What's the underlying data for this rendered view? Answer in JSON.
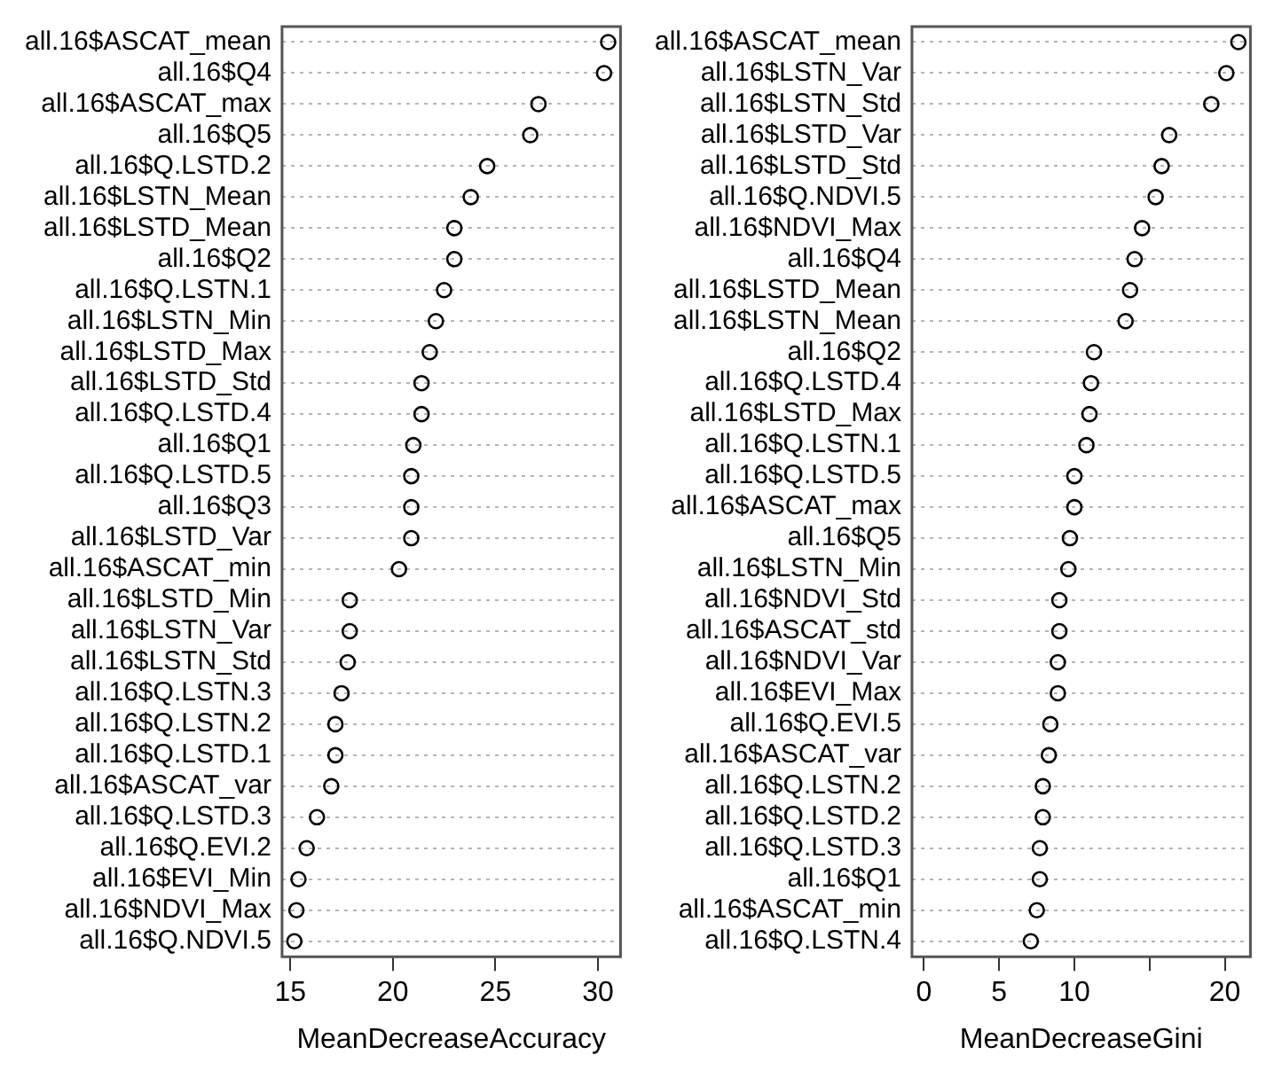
{
  "chart_data": [
    {
      "type": "scatter",
      "orientation": "horizontal",
      "xlabel": "MeanDecreaseAccuracy",
      "marker": "circle",
      "grid": "y",
      "xlim": [
        14.6,
        31.1
      ],
      "xticks": [
        15,
        20,
        25,
        30
      ],
      "categories": [
        "all.16$ASCAT_mean",
        "all.16$Q4",
        "all.16$ASCAT_max",
        "all.16$Q5",
        "all.16$Q.LSTD.2",
        "all.16$LSTN_Mean",
        "all.16$LSTD_Mean",
        "all.16$Q2",
        "all.16$Q.LSTN.1",
        "all.16$LSTN_Min",
        "all.16$LSTD_Max",
        "all.16$LSTD_Std",
        "all.16$Q.LSTD.4",
        "all.16$Q1",
        "all.16$Q.LSTD.5",
        "all.16$Q3",
        "all.16$LSTD_Var",
        "all.16$ASCAT_min",
        "all.16$LSTD_Min",
        "all.16$LSTN_Var",
        "all.16$LSTN_Std",
        "all.16$Q.LSTN.3",
        "all.16$Q.LSTN.2",
        "all.16$Q.LSTD.1",
        "all.16$ASCAT_var",
        "all.16$Q.LSTD.3",
        "all.16$Q.EVI.2",
        "all.16$EVI_Min",
        "all.16$NDVI_Max",
        "all.16$Q.NDVI.5"
      ],
      "series": [
        {
          "color": "#000000",
          "values": [
            30.5,
            30.3,
            27.1,
            26.7,
            24.6,
            23.8,
            23.0,
            23.0,
            22.5,
            22.1,
            21.8,
            21.4,
            21.4,
            21.0,
            20.9,
            20.9,
            20.9,
            20.3,
            17.9,
            17.9,
            17.8,
            17.5,
            17.2,
            17.2,
            17.0,
            16.3,
            15.8,
            15.4,
            15.3,
            15.2
          ]
        }
      ]
    },
    {
      "type": "scatter",
      "orientation": "horizontal",
      "xlabel": "MeanDecreaseGini",
      "marker": "circle",
      "grid": "y",
      "xlim": [
        -0.8,
        21.7
      ],
      "xticks": [
        0,
        5,
        10,
        {
          "value": 15,
          "label": null
        },
        20
      ],
      "categories": [
        "all.16$ASCAT_mean",
        "all.16$LSTN_Var",
        "all.16$LSTN_Std",
        "all.16$LSTD_Var",
        "all.16$LSTD_Std",
        "all.16$Q.NDVI.5",
        "all.16$NDVI_Max",
        "all.16$Q4",
        "all.16$LSTD_Mean",
        "all.16$LSTN_Mean",
        "all.16$Q2",
        "all.16$Q.LSTD.4",
        "all.16$LSTD_Max",
        "all.16$Q.LSTN.1",
        "all.16$Q.LSTD.5",
        "all.16$ASCAT_max",
        "all.16$Q5",
        "all.16$LSTN_Min",
        "all.16$NDVI_Std",
        "all.16$ASCAT_std",
        "all.16$NDVI_Var",
        "all.16$EVI_Max",
        "all.16$Q.EVI.5",
        "all.16$ASCAT_var",
        "all.16$Q.LSTN.2",
        "all.16$Q.LSTD.2",
        "all.16$Q.LSTD.3",
        "all.16$Q1",
        "all.16$ASCAT_min",
        "all.16$Q.LSTN.4"
      ],
      "series": [
        {
          "color": "#000000",
          "values": [
            20.9,
            20.1,
            19.1,
            16.3,
            15.8,
            15.4,
            14.5,
            14.0,
            13.7,
            13.4,
            11.3,
            11.1,
            11.0,
            10.8,
            10.0,
            10.0,
            9.7,
            9.6,
            9.0,
            9.0,
            8.9,
            8.9,
            8.4,
            8.3,
            7.9,
            7.9,
            7.7,
            7.7,
            7.5,
            7.1
          ]
        }
      ]
    }
  ]
}
